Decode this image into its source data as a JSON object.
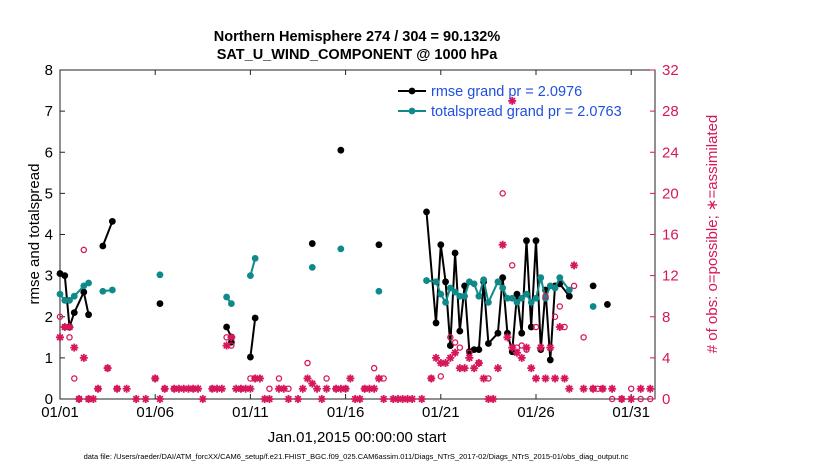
{
  "chart_data": {
    "type": "line",
    "title": "Northern Hemisphere 274 / 304 = 90.132%",
    "subtitle": "SAT_U_WIND_COMPONENT @ 1000 hPa",
    "xlabel": "Jan.01,2015 00:00:00 start",
    "ylabel_left": "rmse and totalspread",
    "ylabel_right": "# of obs: o=possible; ∗=assimilated",
    "footer": "data file: /Users/raeder/DAI/ATM_forcXX/CAM6_setup/f.e21.FHIST_BGC.f09_025.CAM6assim.011/Diags_NTrS_2017-02/Diags_NTrS_2015-01/obs_diag_output.nc",
    "x_ticks": [
      {
        "value": 1,
        "label": "01/01"
      },
      {
        "value": 6,
        "label": "01/06"
      },
      {
        "value": 11,
        "label": "01/11"
      },
      {
        "value": 16,
        "label": "01/16"
      },
      {
        "value": 21,
        "label": "01/21"
      },
      {
        "value": 26,
        "label": "01/26"
      },
      {
        "value": 31,
        "label": "01/31"
      }
    ],
    "xlim": [
      1,
      32.25
    ],
    "ylim_left": [
      0,
      8
    ],
    "ylim_right": [
      0,
      32
    ],
    "y_ticks_left": [
      0,
      1,
      2,
      3,
      4,
      5,
      6,
      7,
      8
    ],
    "y_ticks_right": [
      0,
      4,
      8,
      12,
      16,
      20,
      24,
      28,
      32
    ],
    "grid": false,
    "legend_position": "top-right",
    "colors": {
      "rmse": "#000000",
      "spread": "#0f8a8a",
      "obs": "#d6175c",
      "legend_text": "#1f4fe0"
    },
    "series": [
      {
        "name": "rmse grand pr = 2.0976",
        "color": "#000000",
        "axis": "left",
        "points": [
          [
            1.0,
            3.05
          ],
          [
            1.25,
            3.0
          ],
          [
            1.5,
            1.75
          ],
          [
            1.75,
            2.1
          ],
          [
            2.25,
            2.6
          ],
          [
            2.5,
            2.05
          ],
          [
            3.25,
            3.72
          ],
          [
            3.75,
            4.32
          ],
          [
            6.25,
            2.32
          ],
          [
            9.75,
            1.75
          ],
          [
            10.0,
            1.5
          ],
          [
            10.0,
            1.38
          ],
          [
            11.0,
            1.02
          ],
          [
            11.25,
            1.97
          ],
          [
            14.25,
            3.78
          ],
          [
            15.75,
            6.05
          ],
          [
            17.75,
            3.75
          ],
          [
            20.25,
            4.55
          ],
          [
            20.75,
            1.85
          ],
          [
            21.0,
            3.75
          ],
          [
            21.25,
            2.85
          ],
          [
            21.5,
            1.3
          ],
          [
            21.75,
            3.55
          ],
          [
            22.0,
            1.65
          ],
          [
            22.25,
            2.75
          ],
          [
            22.5,
            1.15
          ],
          [
            22.75,
            1.2
          ],
          [
            23.0,
            1.2
          ],
          [
            23.25,
            2.85
          ],
          [
            23.5,
            1.35
          ],
          [
            24.0,
            1.6
          ],
          [
            24.25,
            2.95
          ],
          [
            24.5,
            1.6
          ],
          [
            24.75,
            1.15
          ],
          [
            25.0,
            2.55
          ],
          [
            25.25,
            1.6
          ],
          [
            25.5,
            3.85
          ],
          [
            25.75,
            1.75
          ],
          [
            26.0,
            3.85
          ],
          [
            26.25,
            1.2
          ],
          [
            26.5,
            2.65
          ],
          [
            26.75,
            0.95
          ],
          [
            27.0,
            2.75
          ],
          [
            27.25,
            2.8
          ],
          [
            27.75,
            2.5
          ],
          [
            29.0,
            2.75
          ],
          [
            29.75,
            2.3
          ]
        ]
      },
      {
        "name": "totalspread grand pr = 2.0763",
        "color": "#0f8a8a",
        "axis": "left",
        "points": [
          [
            1.0,
            2.55
          ],
          [
            1.25,
            2.4
          ],
          [
            1.5,
            2.4
          ],
          [
            1.75,
            2.5
          ],
          [
            2.25,
            2.75
          ],
          [
            2.5,
            2.82
          ],
          [
            3.25,
            2.62
          ],
          [
            3.75,
            2.65
          ],
          [
            6.25,
            3.02
          ],
          [
            9.75,
            2.48
          ],
          [
            10.0,
            2.32
          ],
          [
            11.0,
            3.0
          ],
          [
            11.25,
            3.42
          ],
          [
            14.25,
            3.2
          ],
          [
            15.75,
            3.65
          ],
          [
            17.75,
            2.62
          ],
          [
            20.25,
            2.88
          ],
          [
            20.75,
            2.85
          ],
          [
            21.0,
            2.55
          ],
          [
            21.25,
            2.35
          ],
          [
            21.5,
            2.7
          ],
          [
            21.75,
            2.6
          ],
          [
            22.0,
            2.5
          ],
          [
            22.25,
            2.5
          ],
          [
            22.5,
            2.85
          ],
          [
            22.75,
            2.8
          ],
          [
            23.0,
            2.5
          ],
          [
            23.25,
            2.9
          ],
          [
            23.5,
            2.35
          ],
          [
            24.0,
            2.85
          ],
          [
            24.25,
            2.7
          ],
          [
            24.5,
            2.45
          ],
          [
            24.75,
            2.45
          ],
          [
            25.0,
            2.35
          ],
          [
            25.25,
            2.45
          ],
          [
            25.5,
            2.55
          ],
          [
            25.75,
            2.35
          ],
          [
            26.0,
            2.45
          ],
          [
            26.25,
            2.95
          ],
          [
            26.5,
            2.45
          ],
          [
            26.75,
            2.75
          ],
          [
            27.0,
            2.7
          ],
          [
            27.25,
            2.95
          ],
          [
            27.75,
            2.65
          ],
          [
            29.0,
            2.25
          ]
        ]
      },
      {
        "name": "possible",
        "color": "#d6175c",
        "axis": "right",
        "marker": "o",
        "points": [
          [
            1.0,
            8
          ],
          [
            1.25,
            7
          ],
          [
            1.5,
            6
          ],
          [
            1.75,
            2
          ],
          [
            2.0,
            0
          ],
          [
            2.25,
            14.5
          ],
          [
            2.5,
            0
          ],
          [
            3.0,
            1
          ],
          [
            3.5,
            3
          ],
          [
            4.0,
            1
          ],
          [
            6.0,
            2
          ],
          [
            6.5,
            1
          ],
          [
            7.0,
            1
          ],
          [
            8.0,
            1
          ],
          [
            9.0,
            1
          ],
          [
            9.75,
            6
          ],
          [
            10.0,
            5.2
          ],
          [
            10.5,
            1
          ],
          [
            11.0,
            2
          ],
          [
            11.25,
            2
          ],
          [
            12.0,
            1
          ],
          [
            12.5,
            2
          ],
          [
            13.0,
            1
          ],
          [
            14.0,
            3.5
          ],
          [
            15.0,
            2
          ],
          [
            15.5,
            1
          ],
          [
            16.0,
            1
          ],
          [
            17.0,
            1
          ],
          [
            17.5,
            3
          ],
          [
            18.0,
            2
          ],
          [
            20.5,
            2
          ],
          [
            21.0,
            2.2
          ],
          [
            21.5,
            6
          ],
          [
            21.75,
            5.5
          ],
          [
            22.0,
            5
          ],
          [
            22.5,
            4.5
          ],
          [
            23.0,
            3.5
          ],
          [
            23.5,
            2
          ],
          [
            24.25,
            20
          ],
          [
            24.75,
            13
          ],
          [
            25.0,
            5
          ],
          [
            25.25,
            5.2
          ],
          [
            25.5,
            4.8
          ],
          [
            26.0,
            7
          ],
          [
            26.5,
            10
          ],
          [
            27.0,
            8
          ],
          [
            27.25,
            9
          ],
          [
            27.5,
            7
          ],
          [
            28.0,
            11
          ],
          [
            28.5,
            6
          ],
          [
            29.0,
            1
          ],
          [
            29.25,
            1
          ],
          [
            29.5,
            1
          ],
          [
            30.0,
            0
          ],
          [
            30.5,
            0
          ],
          [
            31.0,
            1
          ],
          [
            31.5,
            0
          ],
          [
            32.0,
            0
          ]
        ]
      },
      {
        "name": "assimilated",
        "color": "#d6175c",
        "axis": "right",
        "marker": "*",
        "points": [
          [
            1.0,
            6
          ],
          [
            1.25,
            7
          ],
          [
            1.5,
            7
          ],
          [
            1.75,
            5
          ],
          [
            2.0,
            0
          ],
          [
            2.25,
            4
          ],
          [
            2.5,
            0
          ],
          [
            2.75,
            0
          ],
          [
            3.0,
            1
          ],
          [
            3.5,
            3
          ],
          [
            4.0,
            1
          ],
          [
            4.5,
            1
          ],
          [
            5.0,
            0
          ],
          [
            5.5,
            0
          ],
          [
            6.0,
            2
          ],
          [
            6.25,
            0
          ],
          [
            6.5,
            1
          ],
          [
            7.0,
            1
          ],
          [
            7.25,
            1
          ],
          [
            7.5,
            1
          ],
          [
            7.75,
            1
          ],
          [
            8.0,
            1
          ],
          [
            8.25,
            1
          ],
          [
            8.5,
            0
          ],
          [
            9.0,
            1
          ],
          [
            9.25,
            1
          ],
          [
            9.5,
            1
          ],
          [
            9.75,
            5.2
          ],
          [
            10.0,
            6
          ],
          [
            10.25,
            1
          ],
          [
            10.5,
            1
          ],
          [
            10.75,
            1
          ],
          [
            11.0,
            1
          ],
          [
            11.25,
            2
          ],
          [
            11.5,
            2
          ],
          [
            11.75,
            0
          ],
          [
            12.0,
            0
          ],
          [
            12.5,
            1
          ],
          [
            12.75,
            1
          ],
          [
            13.0,
            0
          ],
          [
            13.5,
            0
          ],
          [
            13.75,
            1
          ],
          [
            14.0,
            2
          ],
          [
            14.25,
            1.5
          ],
          [
            14.5,
            1
          ],
          [
            14.75,
            0
          ],
          [
            15.0,
            1
          ],
          [
            15.5,
            1
          ],
          [
            15.75,
            1
          ],
          [
            16.0,
            1
          ],
          [
            16.25,
            2
          ],
          [
            16.5,
            0
          ],
          [
            16.75,
            0
          ],
          [
            17.0,
            1
          ],
          [
            17.25,
            1
          ],
          [
            17.5,
            1
          ],
          [
            17.75,
            2
          ],
          [
            18.0,
            0
          ],
          [
            18.5,
            0
          ],
          [
            18.75,
            0
          ],
          [
            19.0,
            0
          ],
          [
            19.25,
            0
          ],
          [
            19.5,
            0
          ],
          [
            20.0,
            0
          ],
          [
            20.5,
            2
          ],
          [
            20.75,
            4
          ],
          [
            21.0,
            3.5
          ],
          [
            21.25,
            3.5
          ],
          [
            21.5,
            4
          ],
          [
            21.75,
            4.5
          ],
          [
            22.0,
            3
          ],
          [
            22.25,
            3
          ],
          [
            22.5,
            4
          ],
          [
            22.75,
            3
          ],
          [
            23.0,
            3.5
          ],
          [
            23.25,
            2
          ],
          [
            23.5,
            0
          ],
          [
            23.75,
            0
          ],
          [
            24.0,
            3
          ],
          [
            24.25,
            15
          ],
          [
            24.5,
            6
          ],
          [
            24.75,
            5
          ],
          [
            25.0,
            4.5
          ],
          [
            25.25,
            4
          ],
          [
            25.5,
            5
          ],
          [
            25.75,
            3
          ],
          [
            26.0,
            2
          ],
          [
            26.25,
            5
          ],
          [
            26.5,
            2
          ],
          [
            26.75,
            5
          ],
          [
            27.0,
            2
          ],
          [
            27.25,
            7
          ],
          [
            27.5,
            2
          ],
          [
            27.75,
            1
          ],
          [
            28.0,
            13
          ],
          [
            28.5,
            1
          ],
          [
            29.0,
            1
          ],
          [
            29.5,
            1
          ],
          [
            30.0,
            1
          ],
          [
            30.5,
            0
          ],
          [
            31.0,
            0
          ],
          [
            31.5,
            1
          ],
          [
            32.0,
            1
          ],
          [
            24.75,
            29
          ]
        ]
      }
    ],
    "legend": [
      {
        "label": "rmse grand pr = 2.0976",
        "color": "#000000"
      },
      {
        "label": "totalspread grand pr = 2.0763",
        "color": "#0f8a8a"
      }
    ]
  }
}
